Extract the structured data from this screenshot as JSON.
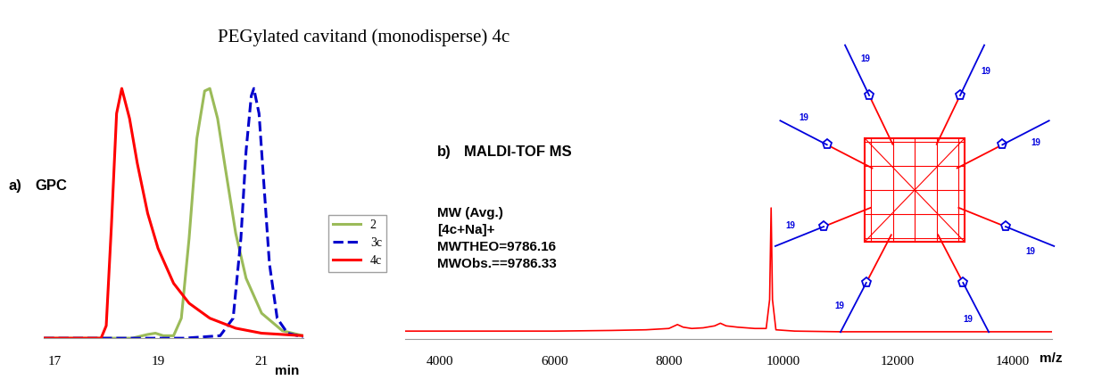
{
  "title": "PEGylated cavitand (monodisperse) 4c",
  "chart_data": [
    {
      "type": "line",
      "panel": "a)",
      "title": "GPC",
      "xlabel": "min",
      "xlim": [
        16.8,
        21.8
      ],
      "xticks": [
        17,
        19,
        21
      ],
      "ylim": [
        0,
        105
      ],
      "tick_labels": "x",
      "legend": "center left",
      "series": [
        {
          "name": "2",
          "color": "#9bbb59",
          "line_style": "solid",
          "x": [
            16.8,
            18.5,
            18.8,
            18.95,
            19.1,
            19.3,
            19.45,
            19.6,
            19.75,
            19.9,
            20.0,
            20.15,
            20.3,
            20.5,
            20.7,
            21.0,
            21.4,
            21.8
          ],
          "values": [
            0,
            0,
            1.5,
            2,
            1,
            1,
            8,
            40,
            80,
            99,
            100,
            88,
            68,
            42,
            24,
            10,
            3,
            1
          ]
        },
        {
          "name": "3c",
          "color": "#0000cc",
          "line_style": "dashed",
          "x": [
            16.8,
            19.5,
            20.2,
            20.45,
            20.6,
            20.7,
            20.8,
            20.85,
            20.95,
            21.05,
            21.15,
            21.3,
            21.5,
            21.8
          ],
          "values": [
            0,
            0,
            1,
            8,
            40,
            75,
            97,
            100,
            90,
            60,
            30,
            8,
            2,
            0.5
          ]
        },
        {
          "name": "4c",
          "color": "#ff0000",
          "line_style": "solid",
          "x": [
            16.8,
            17.5,
            17.9,
            18.0,
            18.1,
            18.2,
            18.3,
            18.45,
            18.6,
            18.8,
            19.0,
            19.3,
            19.6,
            20.0,
            20.5,
            21.0,
            21.8
          ],
          "values": [
            0,
            0,
            0,
            5,
            45,
            90,
            100,
            88,
            70,
            50,
            36,
            22,
            14,
            8,
            4,
            2,
            1
          ]
        }
      ]
    },
    {
      "type": "line",
      "panel": "b)",
      "title": "MALDI-TOF MS",
      "xlabel": "m/z",
      "xlim": [
        3400,
        14700
      ],
      "xticks": [
        4000,
        6000,
        8000,
        10000,
        12000,
        14000
      ],
      "ylim": [
        0,
        105
      ],
      "tick_labels": "x",
      "annotations": [
        "MW (Avg.)",
        "[4c+Na]+",
        "MWTHEO=9786.16",
        "MWObs.==9786.33"
      ],
      "series": [
        {
          "color": "#ff0000",
          "line_style": "solid",
          "x": [
            3400,
            4000,
            5000,
            6000,
            7000,
            7600,
            8000,
            8150,
            8250,
            8400,
            8600,
            8800,
            8900,
            9000,
            9200,
            9500,
            9700,
            9760,
            9786.33,
            9810,
            9870,
            10200,
            11000,
            12000,
            13000,
            14000,
            14700
          ],
          "values": [
            6,
            6,
            6,
            6,
            6.5,
            7,
            8,
            11,
            9,
            8,
            8.5,
            10,
            12,
            10,
            9,
            8,
            8,
            30,
            100,
            30,
            7,
            6,
            5.5,
            5.5,
            5.5,
            5.5,
            5.5
          ]
        }
      ]
    }
  ],
  "structure": {
    "arm_labels": [
      "19",
      "19",
      "19",
      "19",
      "19",
      "19",
      "19",
      "19"
    ]
  }
}
